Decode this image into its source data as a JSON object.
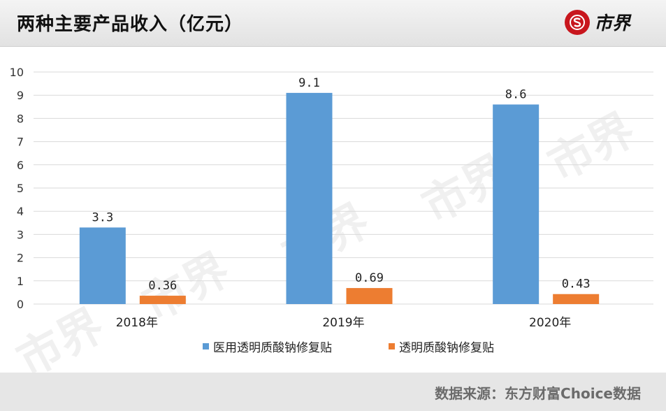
{
  "header": {
    "title": "两种主要产品收入（亿元）",
    "logo_text": "市界"
  },
  "footer": {
    "source": "数据来源：东方财富Choice数据"
  },
  "colors": {
    "series1": "#5b9bd5",
    "series2": "#ed7d31",
    "grid": "#d9d9d9",
    "logo_red": "#c8161d"
  },
  "chart_data": {
    "type": "bar",
    "categories": [
      "2018年",
      "2019年",
      "2020年"
    ],
    "series": [
      {
        "name": "医用透明质酸钠修复贴",
        "values": [
          3.3,
          9.1,
          8.6
        ],
        "labels": [
          "3.3",
          "9.1",
          "8.6"
        ],
        "color": "#5b9bd5"
      },
      {
        "name": "透明质酸钠修复贴",
        "values": [
          0.36,
          0.69,
          0.43
        ],
        "labels": [
          "0.36",
          "0.69",
          "0.43"
        ],
        "color": "#ed7d31"
      }
    ],
    "yticks": [
      "0",
      "1",
      "2",
      "3",
      "4",
      "5",
      "6",
      "7",
      "8",
      "9",
      "10"
    ],
    "ylim": [
      0,
      10
    ],
    "grid": true,
    "legend_position": "bottom"
  }
}
